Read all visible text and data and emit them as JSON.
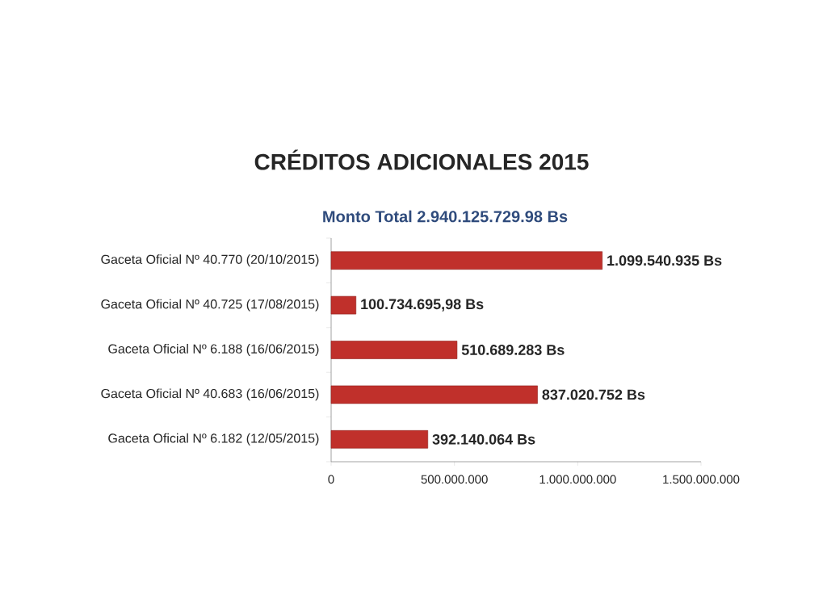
{
  "chart_data": {
    "type": "bar",
    "orientation": "horizontal",
    "title": "CRÉDITOS ADICIONALES 2015",
    "subtitle": "Monto Total 2.940.125.729.98 Bs",
    "categories": [
      "Gaceta Oficial Nº 40.770 (20/10/2015)",
      "Gaceta Oficial Nº 40.725 (17/08/2015)",
      "Gaceta Oficial Nº 6.188 (16/06/2015)",
      "Gaceta Oficial Nº 40.683 (16/06/2015)",
      "Gaceta Oficial Nº 6.182 (12/05/2015)"
    ],
    "values": [
      1099540935,
      100734695.98,
      510689283,
      837020752,
      392140064
    ],
    "value_labels": [
      "1.099.540.935 Bs",
      "100.734.695,98 Bs",
      "510.689.283 Bs",
      "837.020.752 Bs",
      "392.140.064 Bs"
    ],
    "color": "#c0302b",
    "xlim": [
      0,
      1500000000
    ],
    "xticks": [
      0,
      {
        "value": 500000000,
        "label": "500.000.000"
      },
      {
        "value": 1000000000,
        "label": "1.000.000.000"
      },
      {
        "value": 1500000000,
        "label": "1.500.000.000"
      }
    ]
  }
}
